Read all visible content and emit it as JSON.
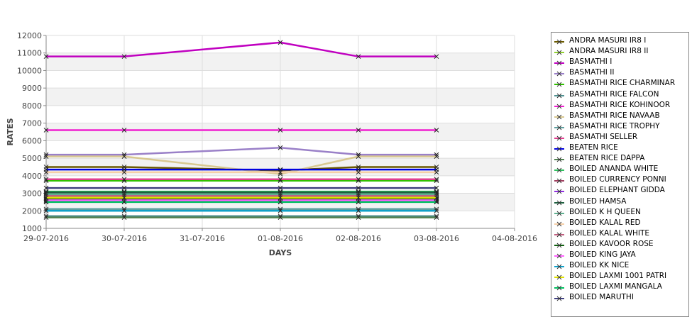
{
  "chart_data": {
    "type": "line",
    "xlabel": "DAYS",
    "ylabel": "RATES",
    "x_ticks": [
      "29-07-2016",
      "30-07-2016",
      "31-07-2016",
      "01-08-2016",
      "02-08-2016",
      "03-08-2016",
      "04-08-2016"
    ],
    "y_ticks": [
      1000,
      2000,
      3000,
      4000,
      5000,
      6000,
      7000,
      8000,
      9000,
      10000,
      11000,
      12000
    ],
    "ylim": [
      1000,
      12000
    ],
    "x_point_indices": [
      0,
      1,
      3,
      4,
      5
    ],
    "grid": true,
    "legend_position": "right",
    "series": [
      {
        "name": "ANDRA MASURI IR8 I",
        "color": "#6b5a00",
        "values": [
          4500,
          4500,
          4300,
          4500,
          4500
        ]
      },
      {
        "name": "ANDRA MASURI IR8 II",
        "color": "#90d030",
        "values": [
          2700,
          2700,
          2700,
          2700,
          2700
        ]
      },
      {
        "name": "BASMATHI I",
        "color": "#c000c0",
        "values": [
          10800,
          10800,
          11600,
          10800,
          10800
        ]
      },
      {
        "name": "BASMATHI II",
        "color": "#9a80c8",
        "values": [
          5200,
          5200,
          5600,
          5200,
          5200
        ]
      },
      {
        "name": "BASMATHI RICE CHARMINAR",
        "color": "#30c000",
        "values": [
          3720,
          3720,
          3720,
          3720,
          3720
        ]
      },
      {
        "name": "BASMATHI RICE FALCON",
        "color": "#509090",
        "values": [
          1700,
          1700,
          1700,
          1700,
          1700
        ]
      },
      {
        "name": "BASMATHI RICE KOHINOOR",
        "color": "#f020d0",
        "values": [
          6600,
          6600,
          6600,
          6600,
          6600
        ]
      },
      {
        "name": "BASMATHI RICE NAVAAB",
        "color": "#d8c890",
        "values": [
          5100,
          5100,
          4100,
          5100,
          5100
        ]
      },
      {
        "name": "BASMATHI RICE TROPHY",
        "color": "#60a0a0",
        "values": [
          2100,
          2100,
          2100,
          2100,
          2100
        ]
      },
      {
        "name": "BASMATHI SELLER",
        "color": "#e04090",
        "values": [
          3800,
          3800,
          3800,
          3800,
          3800
        ]
      },
      {
        "name": "BEATEN RICE",
        "color": "#0000e0",
        "values": [
          4350,
          4350,
          4350,
          4350,
          4350
        ]
      },
      {
        "name": "BEATEN RICE DAPPA",
        "color": "#508050",
        "values": [
          1620,
          1620,
          1620,
          1620,
          1620
        ]
      },
      {
        "name": "BOILED ANANDA WHITE",
        "color": "#30c060",
        "values": [
          3100,
          3100,
          3100,
          3100,
          3100
        ]
      },
      {
        "name": "BOILED CURRENCY PONNI",
        "color": "#a04060",
        "values": [
          3000,
          3000,
          3000,
          3000,
          3000
        ]
      },
      {
        "name": "BOILED ELEPHANT GIDDA",
        "color": "#9030e0",
        "values": [
          2550,
          2550,
          2550,
          2550,
          2550
        ]
      },
      {
        "name": "BOILED HAMSA",
        "color": "#206040",
        "values": [
          3050,
          3050,
          3050,
          3050,
          3050
        ]
      },
      {
        "name": "BOILED K H QUEEN",
        "color": "#60b090",
        "values": [
          2950,
          2950,
          2950,
          2950,
          2950
        ]
      },
      {
        "name": "BOILED KALAL RED",
        "color": "#f5cfa8",
        "values": [
          4200,
          4200,
          4200,
          4200,
          4200
        ]
      },
      {
        "name": "BOILED KALAL WHITE",
        "color": "#c06080",
        "values": [
          2850,
          2850,
          2850,
          2850,
          2850
        ]
      },
      {
        "name": "BOILED KAVOOR ROSE",
        "color": "#106010",
        "values": [
          2650,
          2650,
          2650,
          2650,
          2650
        ]
      },
      {
        "name": "BOILED KING JAYA",
        "color": "#ff60ff",
        "values": [
          2600,
          2600,
          2600,
          2600,
          2600
        ]
      },
      {
        "name": "BOILED KK NICE",
        "color": "#10a0c8",
        "values": [
          2000,
          2000,
          2000,
          2000,
          2000
        ]
      },
      {
        "name": "BOILED LAXMI 1001 PATRI",
        "color": "#e0e000",
        "values": [
          2750,
          2750,
          2750,
          2750,
          2750
        ]
      },
      {
        "name": "BOILED LAXMI MANGALA",
        "color": "#00c060",
        "values": [
          2500,
          2500,
          2500,
          2500,
          2500
        ]
      },
      {
        "name": "BOILED MARUTHI",
        "color": "#404080",
        "values": [
          3300,
          3300,
          3300,
          3300,
          3300
        ]
      }
    ]
  }
}
